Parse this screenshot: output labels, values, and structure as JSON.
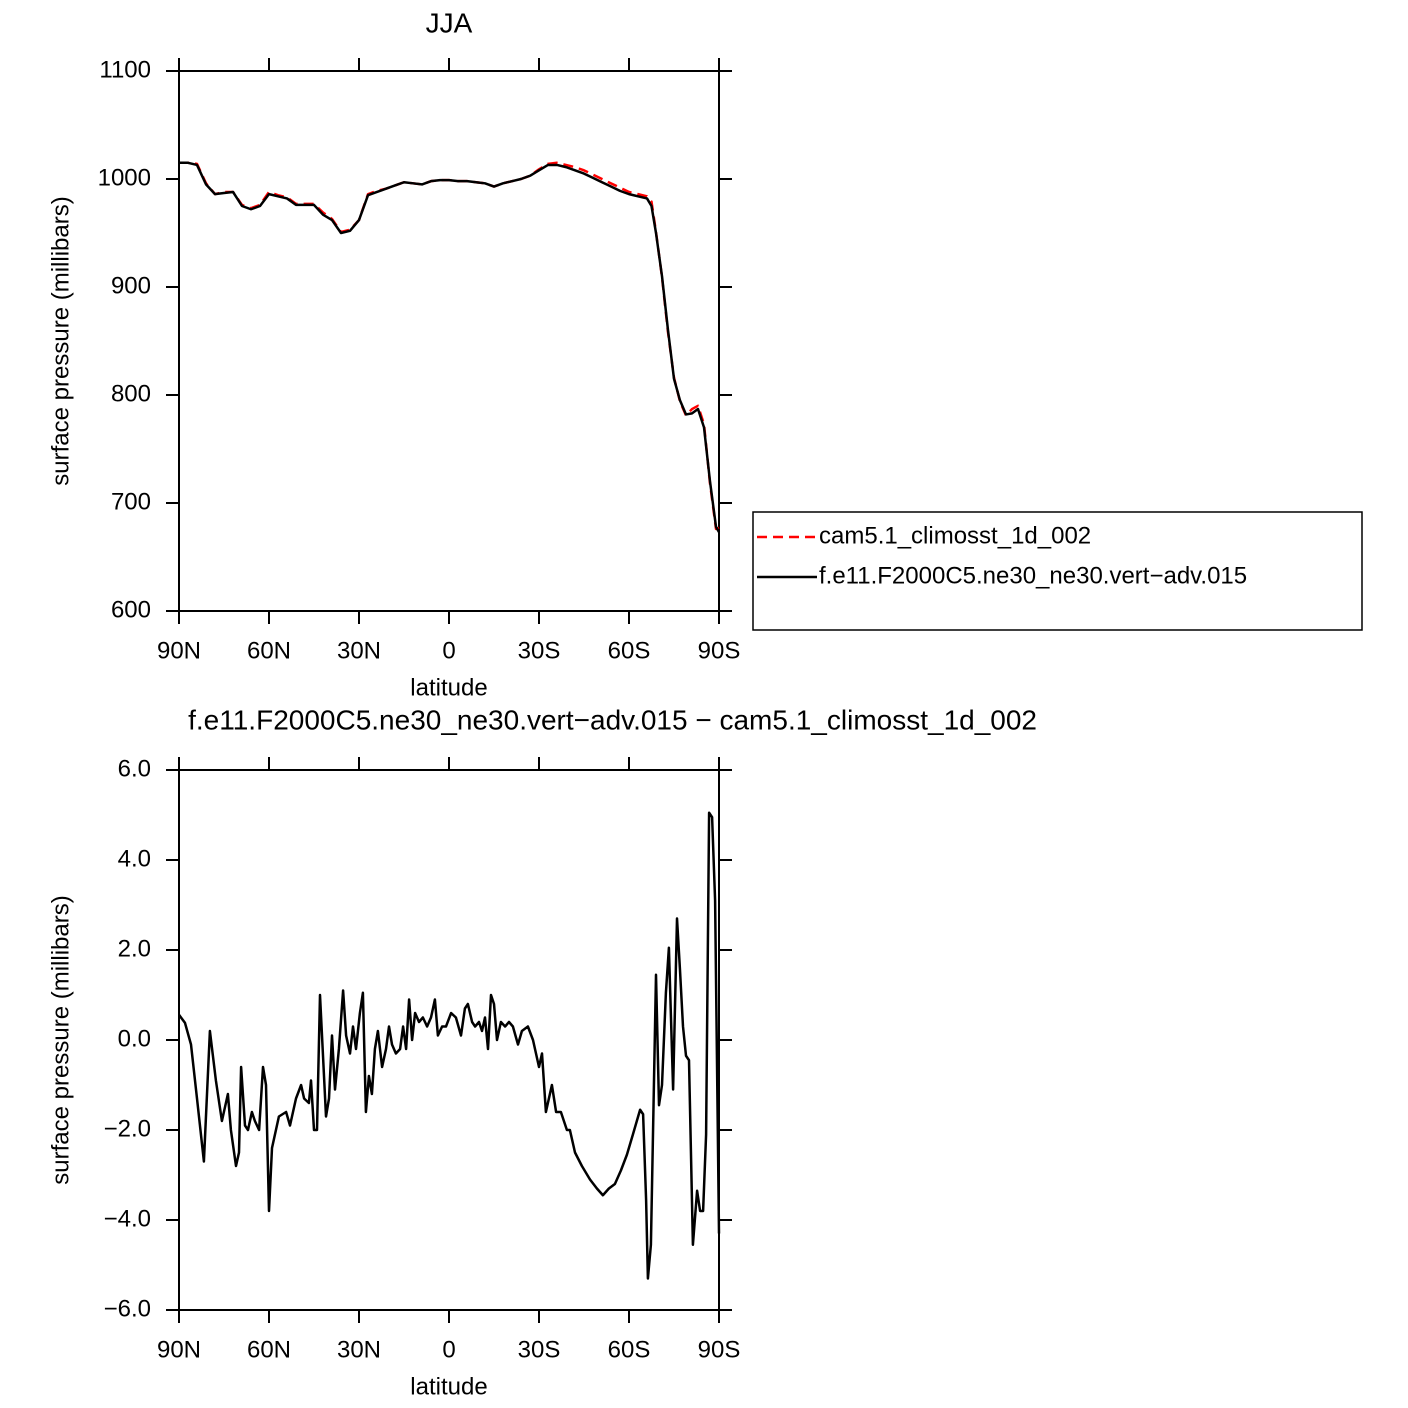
{
  "chart_data": [
    {
      "type": "line",
      "title": "JJA",
      "xlabel": "latitude",
      "ylabel": "surface pressure (millibars)",
      "xlim": [
        90,
        -90
      ],
      "xticks": [
        {
          "value": 90,
          "label": "90N"
        },
        {
          "value": 60,
          "label": "60N"
        },
        {
          "value": 30,
          "label": "30N"
        },
        0,
        {
          "value": -30,
          "label": "30S"
        },
        {
          "value": -60,
          "label": "60S"
        },
        {
          "value": -90,
          "label": "90S"
        }
      ],
      "ylim": [
        600,
        1100
      ],
      "yticks": [
        600,
        700,
        800,
        900,
        1000,
        1100
      ],
      "legend": "right",
      "x": [
        90,
        87,
        84,
        81,
        78,
        75,
        72,
        69,
        66,
        63,
        60,
        57,
        54,
        51,
        48,
        45,
        42,
        39,
        36,
        33,
        30,
        27,
        24,
        21,
        18,
        15,
        12,
        9,
        6,
        3,
        0,
        -3,
        -6,
        -9,
        -12,
        -15,
        -18,
        -21,
        -24,
        -27,
        -30,
        -33,
        -36,
        -39,
        -42,
        -45,
        -48,
        -51,
        -54,
        -57,
        -60,
        -63,
        -66,
        -67.5,
        -69,
        -71,
        -73,
        -75,
        -77,
        -79,
        -81,
        -83,
        -85,
        -87,
        -89,
        -90
      ],
      "series": [
        {
          "name": "cam5.1_climosst_1d_002",
          "color": "#ff0000",
          "dash": true,
          "values": [
            1015,
            1015,
            1014,
            996,
            986,
            988,
            988,
            976,
            973,
            976,
            988,
            985,
            983,
            977,
            977,
            977,
            969,
            963,
            951,
            953,
            962,
            986,
            989,
            991,
            994,
            997,
            996,
            995,
            998,
            999,
            999,
            998,
            998,
            997,
            996,
            993,
            996,
            998,
            1000,
            1003,
            1009,
            1014,
            1015,
            1013,
            1011,
            1008,
            1004,
            1000,
            996,
            992,
            988,
            986,
            984,
            979,
            951,
            909,
            858,
            816,
            794,
            781,
            787,
            790,
            773,
            718,
            676,
            677
          ]
        },
        {
          "name": "f.e11.F2000C5.ne30_ne30.vert−adv.015",
          "color": "#000000",
          "dash": false,
          "values": [
            1015,
            1015,
            1013,
            995,
            986,
            987,
            988,
            975,
            972,
            975,
            986,
            984,
            982,
            976,
            976,
            976,
            967,
            962,
            950,
            952,
            962,
            985,
            988,
            991,
            994,
            997,
            996,
            995,
            998,
            999,
            999,
            998,
            998,
            997,
            996,
            993,
            996,
            998,
            1000,
            1003,
            1008,
            1013,
            1013,
            1011,
            1008,
            1005,
            1001,
            997,
            993,
            989,
            986,
            984,
            982,
            975,
            950,
            910,
            860,
            815,
            795,
            782,
            783,
            787,
            770,
            720,
            678,
            673
          ]
        }
      ]
    },
    {
      "type": "line",
      "title": "f.e11.F2000C5.ne30_ne30.vert−adv.015 − cam5.1_climosst_1d_002",
      "xlabel": "latitude",
      "ylabel": "surface pressure (millibars)",
      "xlim": [
        90,
        -90
      ],
      "xticks": [
        {
          "value": 90,
          "label": "90N"
        },
        {
          "value": 60,
          "label": "60N"
        },
        {
          "value": 30,
          "label": "30N"
        },
        0,
        {
          "value": -30,
          "label": "30S"
        },
        {
          "value": -60,
          "label": "60S"
        },
        {
          "value": -90,
          "label": "90S"
        }
      ],
      "ylim": [
        -6,
        6
      ],
      "yticks": [
        {
          "value": -6,
          "label": "−6.0"
        },
        {
          "value": -4,
          "label": "−4.0"
        },
        {
          "value": -2,
          "label": "−2.0"
        },
        {
          "value": 0,
          "label": "0.0"
        },
        {
          "value": 2,
          "label": "2.0"
        },
        {
          "value": 4,
          "label": "4.0"
        },
        {
          "value": 6,
          "label": "6.0"
        }
      ],
      "x": [
        90,
        88,
        86,
        84,
        81.7,
        79.7,
        77.7,
        75.7,
        73.7,
        72.7,
        71,
        70,
        69.3,
        68,
        67,
        65.7,
        64.7,
        63.3,
        62,
        61,
        60,
        59,
        56.7,
        54.3,
        53,
        51,
        49.3,
        48.3,
        46.7,
        46,
        45,
        44,
        43,
        41,
        40,
        39,
        38,
        36.7,
        35.3,
        34.3,
        33,
        32,
        31,
        29.7,
        28.7,
        27.7,
        26.7,
        25.7,
        24.7,
        23.7,
        22.3,
        21,
        20,
        19,
        17.7,
        16.3,
        15.3,
        14.3,
        13.3,
        12.3,
        11.3,
        10,
        8.7,
        7.3,
        6,
        4.7,
        3.7,
        2.3,
        1,
        -0.7,
        -2.3,
        -4,
        -5.3,
        -6.3,
        -7.7,
        -8.7,
        -10,
        -11,
        -12,
        -13,
        -14,
        -15,
        -16,
        -17.3,
        -18.7,
        -20,
        -21.3,
        -23,
        -24.3,
        -26.3,
        -28,
        -30,
        -31,
        -32.3,
        -34.3,
        -35.7,
        -37.3,
        -39.3,
        -40.3,
        -42,
        -44.3,
        -47,
        -49.3,
        -51.3,
        -53.3,
        -55.3,
        -57.3,
        -59.3,
        -61.3,
        -63.7,
        -64.7,
        -65.7,
        -66.3,
        -67.3,
        -69,
        -70,
        -71,
        -72.3,
        -73.3,
        -74.7,
        -76,
        -77,
        -78,
        -79,
        -80,
        -81.3,
        -82.7,
        -83.7,
        -84.7,
        -85.7,
        -86.7,
        -87.7,
        -88.7,
        -90
      ],
      "series": [
        {
          "color": "#000000",
          "dash": false,
          "values": [
            0.56,
            0.38,
            -0.1,
            -1.3,
            -2.7,
            0.2,
            -0.9,
            -1.8,
            -1.2,
            -2.0,
            -2.8,
            -2.5,
            -0.6,
            -1.9,
            -2.0,
            -1.6,
            -1.8,
            -2.0,
            -0.6,
            -1.0,
            -3.8,
            -2.4,
            -1.7,
            -1.6,
            -1.9,
            -1.3,
            -1.0,
            -1.3,
            -1.4,
            -0.9,
            -2.0,
            -2.0,
            1.0,
            -1.7,
            -1.3,
            0.1,
            -1.1,
            -0.2,
            1.1,
            0.1,
            -0.3,
            0.3,
            -0.2,
            0.6,
            1.05,
            -1.6,
            -0.8,
            -1.2,
            -0.2,
            0.2,
            -0.6,
            -0.2,
            0.3,
            -0.1,
            -0.3,
            -0.2,
            0.3,
            -0.2,
            0.9,
            0.0,
            0.6,
            0.4,
            0.5,
            0.3,
            0.5,
            0.9,
            0.1,
            0.3,
            0.3,
            0.6,
            0.5,
            0.1,
            0.7,
            0.8,
            0.4,
            0.3,
            0.4,
            0.2,
            0.5,
            -0.2,
            1.0,
            0.8,
            0.0,
            0.4,
            0.3,
            0.4,
            0.3,
            -0.1,
            0.2,
            0.3,
            0.0,
            -0.6,
            -0.3,
            -1.6,
            -1.0,
            -1.6,
            -1.6,
            -2.0,
            -2.0,
            -2.5,
            -2.8,
            -3.1,
            -3.3,
            -3.45,
            -3.3,
            -3.2,
            -2.9,
            -2.55,
            -2.1,
            -1.55,
            -1.65,
            -3.55,
            -5.3,
            -4.55,
            1.45,
            -1.45,
            -1.0,
            1.05,
            2.05,
            -1.1,
            2.7,
            1.55,
            0.3,
            -0.35,
            -0.45,
            -4.55,
            -3.35,
            -3.8,
            -3.8,
            -2.1,
            5.05,
            4.95,
            3.1,
            -4.3
          ]
        }
      ]
    }
  ]
}
